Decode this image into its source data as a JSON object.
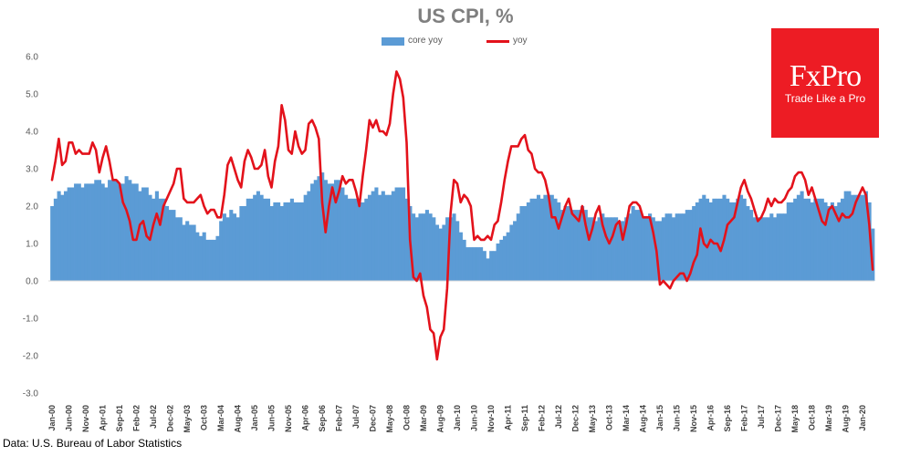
{
  "source": "Data: U.S. Bureau of Labor Statistics",
  "logo": {
    "brand": "FxPro",
    "tagline": "Trade Like a Pro",
    "color": "#ed1c24"
  },
  "chart_data": {
    "type": "bar",
    "title": "US CPI, %",
    "legend": "top-center",
    "grid": false,
    "ylim": [
      -3,
      6
    ],
    "y_tick_labels": [
      "6.0",
      "5.0",
      "4.0",
      "3.0",
      "2.0",
      "1.0",
      "0.0",
      "-1.0",
      "-2.0",
      "-3.0"
    ],
    "x_tick_labels": [
      "Jan-00",
      "Jun-00",
      "Nov-00",
      "Apr-01",
      "Sep-01",
      "Feb-02",
      "Jul-02",
      "Dec-02",
      "May-03",
      "Oct-03",
      "Mar-04",
      "Aug-04",
      "Jan-05",
      "Jun-05",
      "Nov-05",
      "Apr-06",
      "Sep-06",
      "Feb-07",
      "Jul-07",
      "Dec-07",
      "May-08",
      "Oct-08",
      "Mar-09",
      "Aug-09",
      "Jan-10",
      "Jun-10",
      "Nov-10",
      "Apr-11",
      "Sep-11",
      "Feb-12",
      "Jul-12",
      "Dec-12",
      "May-13",
      "Oct-13",
      "Mar-14",
      "Aug-14",
      "Jan-15",
      "Jun-15",
      "Nov-15",
      "Apr-16",
      "Sep-16",
      "Feb-17",
      "Jul-17",
      "Dec-17",
      "May-18",
      "Oct-18",
      "Mar-19",
      "Aug-19",
      "Jan-20"
    ],
    "series": [
      {
        "name": "core yoy",
        "type": "bar",
        "color": "#5b9bd5",
        "values": [
          2.0,
          2.2,
          2.4,
          2.3,
          2.4,
          2.5,
          2.5,
          2.6,
          2.6,
          2.5,
          2.6,
          2.6,
          2.6,
          2.7,
          2.7,
          2.6,
          2.5,
          2.7,
          2.7,
          2.7,
          2.6,
          2.6,
          2.8,
          2.7,
          2.6,
          2.6,
          2.4,
          2.5,
          2.5,
          2.3,
          2.2,
          2.4,
          2.2,
          2.2,
          2.0,
          1.9,
          1.9,
          1.7,
          1.7,
          1.5,
          1.6,
          1.5,
          1.5,
          1.3,
          1.2,
          1.3,
          1.1,
          1.1,
          1.1,
          1.2,
          1.6,
          1.8,
          1.7,
          1.9,
          1.8,
          1.7,
          2.0,
          2.0,
          2.2,
          2.2,
          2.3,
          2.4,
          2.3,
          2.2,
          2.2,
          2.0,
          2.1,
          2.1,
          2.0,
          2.1,
          2.1,
          2.2,
          2.1,
          2.1,
          2.1,
          2.3,
          2.4,
          2.6,
          2.7,
          2.8,
          2.9,
          2.7,
          2.6,
          2.6,
          2.7,
          2.7,
          2.5,
          2.3,
          2.2,
          2.2,
          2.2,
          2.1,
          2.1,
          2.2,
          2.3,
          2.4,
          2.5,
          2.3,
          2.4,
          2.3,
          2.3,
          2.4,
          2.5,
          2.5,
          2.5,
          2.2,
          2.0,
          1.8,
          1.7,
          1.8,
          1.8,
          1.9,
          1.8,
          1.7,
          1.5,
          1.4,
          1.5,
          1.7,
          1.7,
          1.8,
          1.6,
          1.3,
          1.1,
          0.9,
          0.9,
          0.9,
          0.9,
          0.9,
          0.8,
          0.6,
          0.8,
          0.8,
          1.0,
          1.1,
          1.2,
          1.3,
          1.5,
          1.6,
          1.8,
          2.0,
          2.0,
          2.1,
          2.2,
          2.2,
          2.3,
          2.2,
          2.3,
          2.3,
          2.3,
          2.2,
          2.1,
          1.9,
          2.0,
          2.0,
          1.9,
          1.9,
          1.9,
          2.0,
          1.9,
          1.7,
          1.7,
          1.6,
          1.7,
          1.8,
          1.7,
          1.7,
          1.7,
          1.7,
          1.6,
          1.6,
          1.7,
          1.8,
          2.0,
          1.9,
          1.9,
          1.7,
          1.7,
          1.8,
          1.7,
          1.6,
          1.6,
          1.7,
          1.8,
          1.8,
          1.7,
          1.8,
          1.8,
          1.8,
          1.9,
          1.9,
          2.0,
          2.1,
          2.2,
          2.3,
          2.2,
          2.1,
          2.2,
          2.2,
          2.2,
          2.3,
          2.2,
          2.1,
          2.1,
          2.2,
          2.3,
          2.2,
          2.0,
          1.9,
          1.7,
          1.7,
          1.7,
          1.7,
          1.7,
          1.8,
          1.7,
          1.8,
          1.8,
          1.8,
          2.1,
          2.1,
          2.2,
          2.3,
          2.4,
          2.2,
          2.2,
          2.1,
          2.2,
          2.2,
          2.2,
          2.1,
          2.0,
          2.1,
          2.0,
          2.1,
          2.2,
          2.4,
          2.4,
          2.3,
          2.3,
          2.3,
          2.3,
          2.4,
          2.1,
          1.4
        ]
      },
      {
        "name": "yoy",
        "type": "line",
        "color": "#e3121b",
        "values": [
          2.7,
          3.2,
          3.8,
          3.1,
          3.2,
          3.7,
          3.7,
          3.4,
          3.5,
          3.4,
          3.4,
          3.4,
          3.7,
          3.5,
          2.9,
          3.3,
          3.6,
          3.2,
          2.7,
          2.7,
          2.6,
          2.1,
          1.9,
          1.6,
          1.1,
          1.1,
          1.5,
          1.6,
          1.2,
          1.1,
          1.5,
          1.8,
          1.5,
          2.0,
          2.2,
          2.4,
          2.6,
          3.0,
          3.0,
          2.2,
          2.1,
          2.1,
          2.1,
          2.2,
          2.3,
          2.0,
          1.8,
          1.9,
          1.9,
          1.7,
          1.7,
          2.3,
          3.1,
          3.3,
          3.0,
          2.7,
          2.5,
          3.2,
          3.5,
          3.3,
          3.0,
          3.0,
          3.1,
          3.5,
          2.8,
          2.5,
          3.2,
          3.6,
          4.7,
          4.3,
          3.5,
          3.4,
          4.0,
          3.6,
          3.4,
          3.5,
          4.2,
          4.3,
          4.1,
          3.8,
          2.1,
          1.3,
          2.0,
          2.5,
          2.1,
          2.4,
          2.8,
          2.6,
          2.7,
          2.7,
          2.4,
          2.0,
          2.8,
          3.5,
          4.3,
          4.1,
          4.3,
          4.0,
          4.0,
          3.9,
          4.2,
          5.0,
          5.6,
          5.4,
          4.9,
          3.7,
          1.1,
          0.1,
          0.0,
          0.2,
          -0.4,
          -0.7,
          -1.3,
          -1.4,
          -2.1,
          -1.5,
          -1.3,
          -0.2,
          1.8,
          2.7,
          2.6,
          2.1,
          2.3,
          2.2,
          2.0,
          1.1,
          1.2,
          1.1,
          1.1,
          1.2,
          1.1,
          1.5,
          1.6,
          2.1,
          2.7,
          3.2,
          3.6,
          3.6,
          3.6,
          3.8,
          3.9,
          3.5,
          3.4,
          3.0,
          2.9,
          2.9,
          2.7,
          2.3,
          1.7,
          1.7,
          1.4,
          1.7,
          2.0,
          2.2,
          1.8,
          1.7,
          1.6,
          2.0,
          1.5,
          1.1,
          1.4,
          1.8,
          2.0,
          1.5,
          1.2,
          1.0,
          1.2,
          1.5,
          1.6,
          1.1,
          1.5,
          2.0,
          2.1,
          2.1,
          2.0,
          1.7,
          1.7,
          1.7,
          1.3,
          0.8,
          -0.1,
          0.0,
          -0.1,
          -0.2,
          0.0,
          0.1,
          0.2,
          0.2,
          0.0,
          0.2,
          0.5,
          0.7,
          1.4,
          1.0,
          0.9,
          1.1,
          1.0,
          1.0,
          0.8,
          1.1,
          1.5,
          1.6,
          1.7,
          2.1,
          2.5,
          2.7,
          2.4,
          2.2,
          1.9,
          1.6,
          1.7,
          1.9,
          2.2,
          2.0,
          2.2,
          2.1,
          2.1,
          2.2,
          2.4,
          2.5,
          2.8,
          2.9,
          2.9,
          2.7,
          2.3,
          2.5,
          2.2,
          1.9,
          1.6,
          1.5,
          1.9,
          2.0,
          1.8,
          1.6,
          1.8,
          1.7,
          1.7,
          1.8,
          2.1,
          2.3,
          2.5,
          2.3,
          1.5,
          0.3
        ]
      }
    ]
  }
}
